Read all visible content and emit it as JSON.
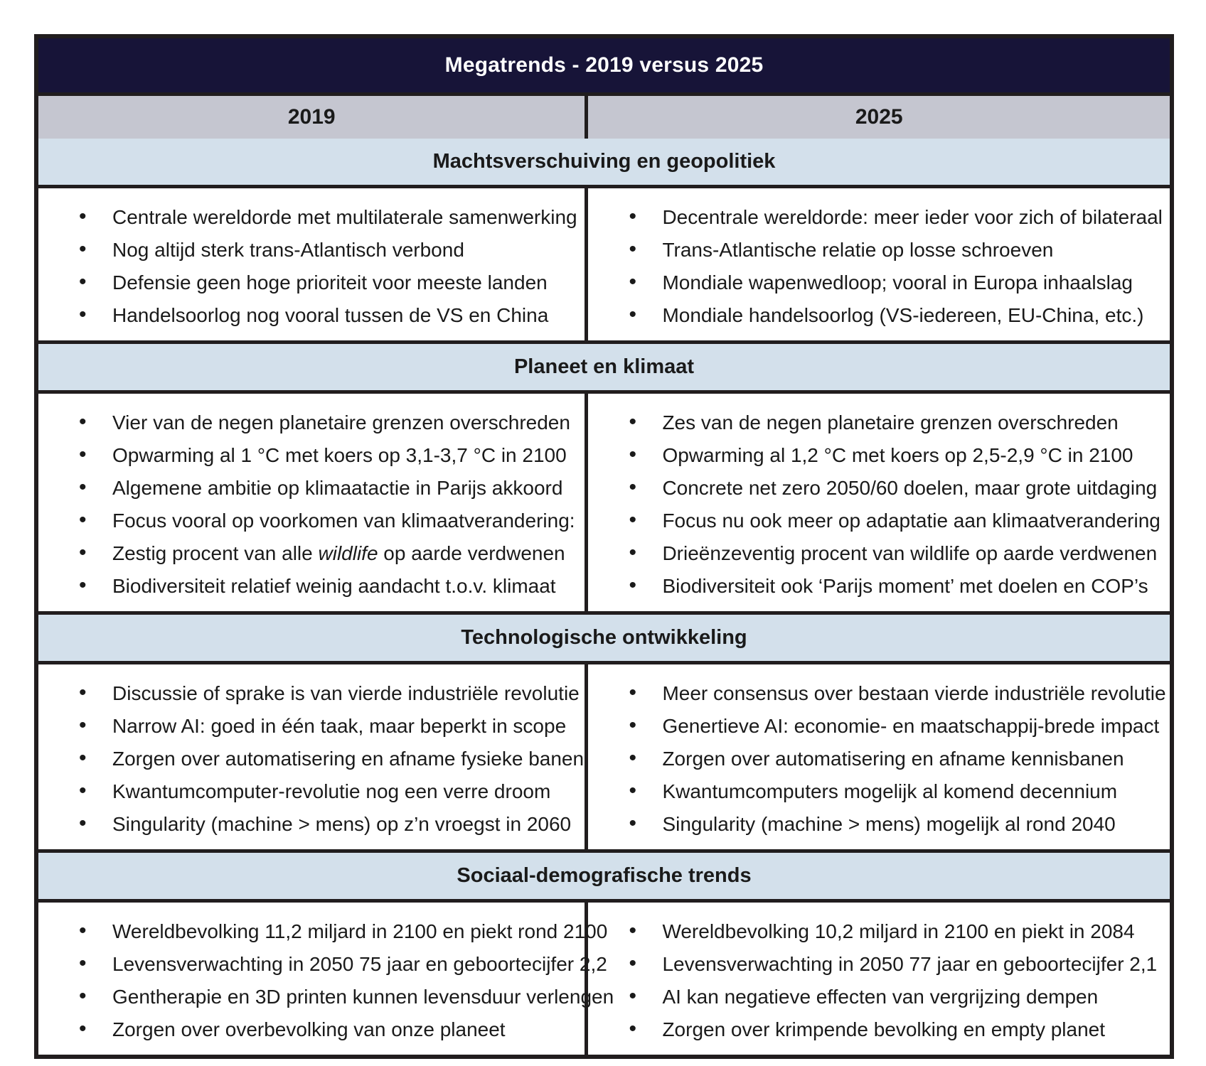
{
  "colors": {
    "title_bg": "#171438",
    "year_header_bg": "#c5c6d0",
    "section_header_bg": "#d3e0eb",
    "border": "#211d1e",
    "text": "#1a1a1a",
    "title_text": "#ffffff"
  },
  "table": {
    "title": "Megatrends - 2019 versus 2025",
    "col_headers": [
      "2019",
      "2025"
    ],
    "sections": [
      {
        "header": "Machtsverschuiving en geopolitiek",
        "left": [
          "Centrale wereldorde met multilaterale samenwerking",
          "Nog altijd sterk trans-Atlantisch verbond",
          "Defensie geen hoge prioriteit voor meeste landen",
          "Handelsoorlog nog vooral tussen de VS en China"
        ],
        "right": [
          "Decentrale wereldorde: meer ieder voor zich of bilateraal",
          "Trans-Atlantische relatie op losse schroeven",
          "Mondiale wapenwedloop; vooral in Europa inhaalslag",
          "Mondiale handelsoorlog (VS-iedereen, EU-China, etc.)"
        ]
      },
      {
        "header": "Planeet en klimaat",
        "left": [
          "Vier van de negen planetaire grenzen overschreden",
          "Opwarming al 1 °C met koers op 3,1-3,7 °C in 2100",
          "Algemene ambitie op klimaatactie in Parijs akkoord",
          "Focus vooral op voorkomen van klimaatverandering:",
          {
            "parts": [
              {
                "text": "Zestig procent van alle "
              },
              {
                "text": "wildlife",
                "italic": true
              },
              {
                "text": " op aarde verdwenen"
              }
            ]
          },
          "Biodiversiteit relatief weinig aandacht t.o.v. klimaat"
        ],
        "right": [
          "Zes van de negen planetaire grenzen overschreden",
          "Opwarming al 1,2 °C met koers op 2,5-2,9 °C in 2100",
          "Concrete net zero 2050/60 doelen, maar grote uitdaging",
          "Focus nu ook meer op adaptatie aan klimaatverandering",
          "Drieënzeventig procent van wildlife op aarde verdwenen",
          "Biodiversiteit ook ‘Parijs moment’ met doelen en COP’s"
        ]
      },
      {
        "header": "Technologische ontwikkeling",
        "left": [
          "Discussie of sprake is van vierde industriële revolutie",
          "Narrow AI: goed in één taak, maar beperkt in scope",
          "Zorgen over automatisering en afname fysieke banen",
          "Kwantumcomputer-revolutie nog een verre droom",
          "Singularity (machine > mens) op z’n vroegst in 2060"
        ],
        "right": [
          "Meer consensus over bestaan vierde industriële revolutie",
          "Genertieve AI: economie- en maatschappij-brede impact",
          "Zorgen over automatisering en afname kennisbanen",
          "Kwantumcomputers mogelijk al komend decennium",
          "Singularity (machine > mens) mogelijk al rond 2040"
        ]
      },
      {
        "header": "Sociaal-demografische trends",
        "left": [
          "Wereldbevolking 11,2 miljard in 2100 en piekt rond 2100",
          "Levensverwachting in 2050 75 jaar en geboortecijfer 2,2",
          "Gentherapie en 3D printen kunnen levensduur verlengen",
          "Zorgen over overbevolking van onze planeet"
        ],
        "right": [
          "Wereldbevolking 10,2 miljard in 2100 en piekt in 2084",
          "Levensverwachting in 2050 77 jaar en geboortecijfer 2,1",
          "AI kan negatieve effecten van vergrijzing dempen",
          "Zorgen over krimpende bevolking en empty planet"
        ]
      }
    ]
  }
}
